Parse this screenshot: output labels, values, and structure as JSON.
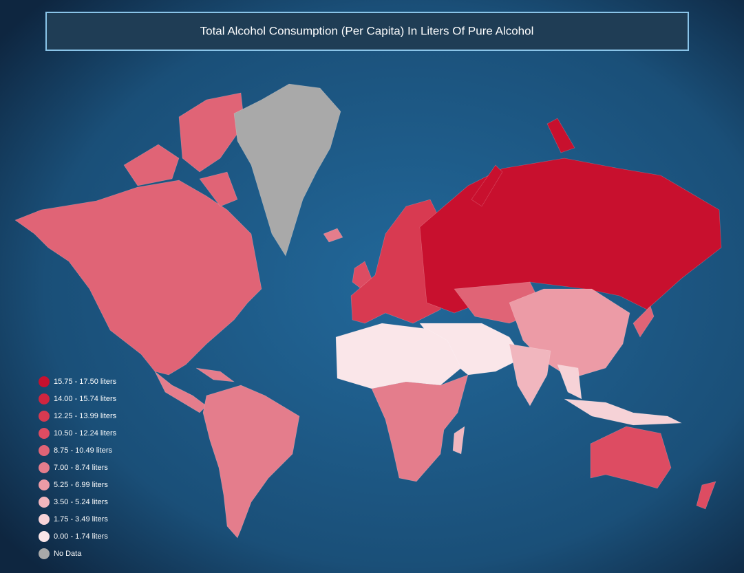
{
  "title": "Total Alcohol Consumption (Per Capita) In Liters Of Pure Alcohol",
  "legend": [
    {
      "label": "15.75 - 17.50 liters",
      "color": "#c8102e"
    },
    {
      "label": "14.00 - 15.74 liters",
      "color": "#d0253f"
    },
    {
      "label": "12.25 - 13.99 liters",
      "color": "#d83a51"
    },
    {
      "label": "10.50 - 12.24 liters",
      "color": "#dd4c62"
    },
    {
      "label": "8.75 - 10.49 liters",
      "color": "#e06476"
    },
    {
      "label": "7.00 - 8.74 liters",
      "color": "#e47d8c"
    },
    {
      "label": "5.25 - 6.99 liters",
      "color": "#ec9ba6"
    },
    {
      "label": "3.50 - 5.24 liters",
      "color": "#f1b6be"
    },
    {
      "label": "1.75 - 3.49 liters",
      "color": "#f6d2d7"
    },
    {
      "label": "0.00 - 1.74 liters",
      "color": "#fae6e9"
    },
    {
      "label": "No Data",
      "color": "#a9a9a9"
    }
  ]
}
